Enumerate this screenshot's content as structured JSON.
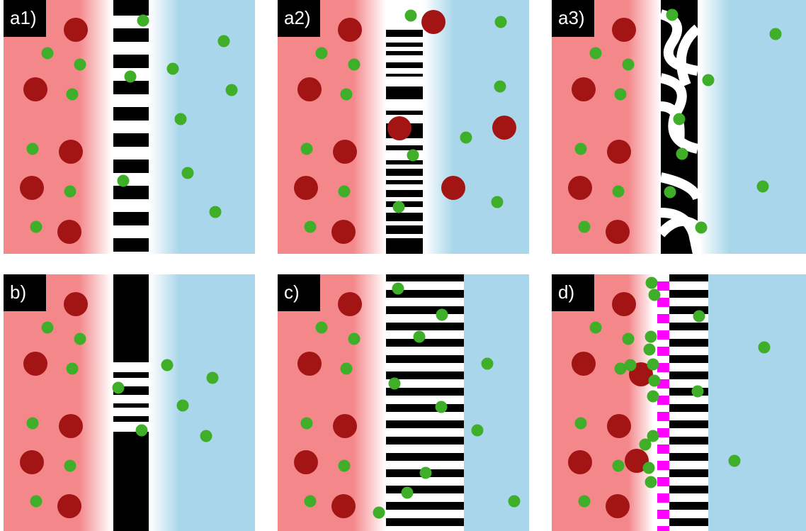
{
  "panels": [
    {
      "label": "a1)"
    },
    {
      "label": "a2)"
    },
    {
      "label": "a3)"
    },
    {
      "label": "b)"
    },
    {
      "label": "c)"
    },
    {
      "label": "d)"
    }
  ]
}
